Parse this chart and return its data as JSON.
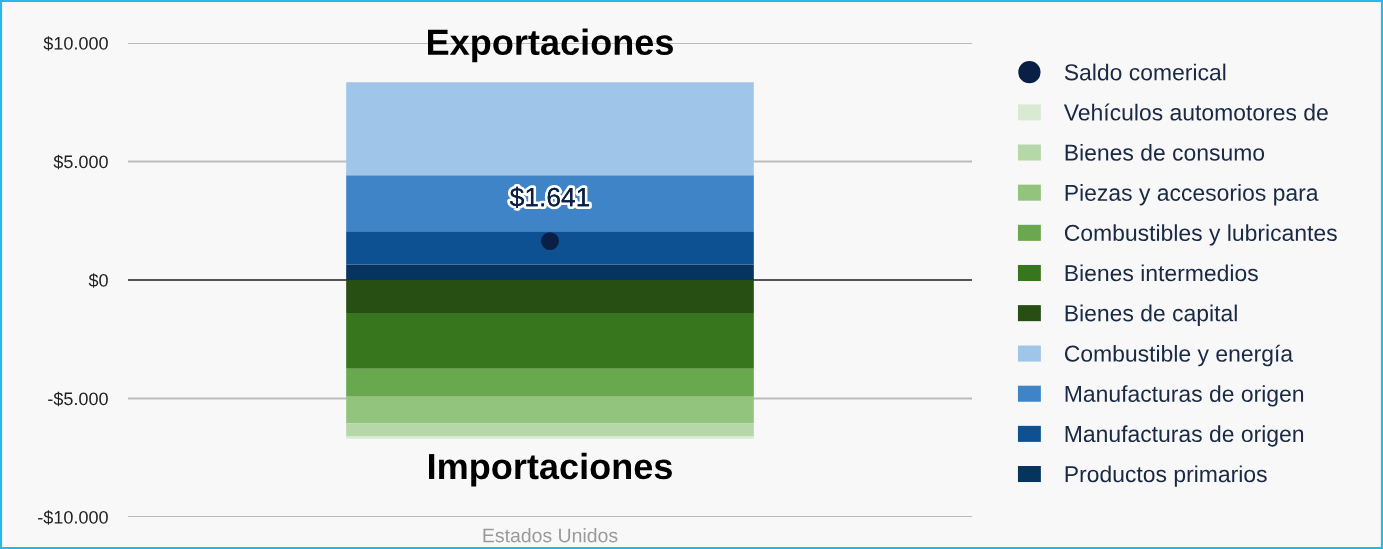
{
  "chart_data": {
    "type": "bar",
    "stacked": true,
    "categories": [
      "Estados Unidos"
    ],
    "annotations": [
      "Exportaciones",
      "Importaciones"
    ],
    "series": [
      {
        "name": "Productos primarios",
        "color": "#07335f",
        "values": [
          650
        ]
      },
      {
        "name": "Manufacturas de origen",
        "color": "#0d5193",
        "values": [
          1410
        ]
      },
      {
        "name": "Manufacturas de origen",
        "color": "#3f84c7",
        "values": [
          2360
        ]
      },
      {
        "name": "Combustible y energía",
        "color": "#9fc5e8",
        "values": [
          3920
        ]
      },
      {
        "name": "Bienes de capital",
        "color": "#274e13",
        "values": [
          -1390
        ]
      },
      {
        "name": "Bienes intermedios",
        "color": "#38761d",
        "values": [
          -2360
        ]
      },
      {
        "name": "Combustibles y lubricantes",
        "color": "#6aa84f",
        "values": [
          -1180
        ]
      },
      {
        "name": "Piezas y accesorios para",
        "color": "#93c47d",
        "values": [
          -1120
        ]
      },
      {
        "name": "Bienes de consumo",
        "color": "#b6d7a8",
        "values": [
          -550
        ]
      },
      {
        "name": "Vehículos automotores de",
        "color": "#d9ead3",
        "values": [
          -100
        ]
      },
      {
        "name": "Saldo comerical",
        "type": "scatter",
        "color": "#0a1f44",
        "values": [
          1641
        ],
        "value_labels": [
          "$1.641"
        ]
      }
    ],
    "ylim": [
      -10000,
      10000
    ],
    "yticks": [
      {
        "value": 10000,
        "label": "$10.000"
      },
      {
        "value": 5000,
        "label": "$5.000"
      },
      {
        "value": 0,
        "label": "$0"
      },
      {
        "value": -5000,
        "label": "-$5.000"
      },
      {
        "value": -10000,
        "label": "-$10.000"
      }
    ],
    "grid": "y",
    "legend": "right",
    "marker": "circle"
  }
}
